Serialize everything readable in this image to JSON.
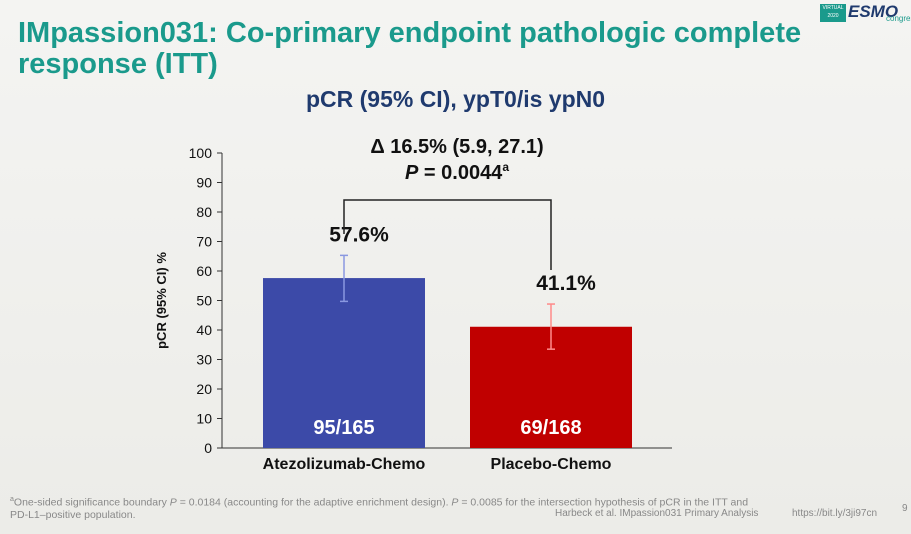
{
  "chart_data": {
    "type": "bar",
    "title": "IMpassion031: Co-primary endpoint pathologic complete response (ITT)",
    "subtitle": "pCR (95% CI), ypT0/is ypN0",
    "y_label": "pCR (95% CI) %",
    "categories": [
      "Atezolizumab-Chemo",
      "Placebo-Chemo"
    ],
    "values": [
      57.6,
      41.1
    ],
    "value_labels": [
      "57.6%",
      "41.1%"
    ],
    "ci_lower": [
      49.7,
      33.5
    ],
    "ci_upper": [
      65.3,
      48.8
    ],
    "bar_labels": [
      "95/165",
      "69/168"
    ],
    "colors": [
      "#3c4aa8",
      "#c00000"
    ],
    "error_colors": [
      "#8a98e0",
      "#ff8a8a"
    ],
    "ylim": [
      0,
      100
    ],
    "yticks": [
      0,
      10,
      20,
      30,
      40,
      50,
      60,
      70,
      80,
      90,
      100
    ],
    "annotation_delta": "Δ 16.5% (5.9, 27.1)",
    "annotation_p": {
      "italic": "P",
      "rest": " = 0.0044",
      "sup": "a"
    },
    "footnote": {
      "sup": "a",
      "line1": [
        "One-sided significance boundary ",
        "P",
        " = 0.0184 (accounting for the adaptive enrichment design). ",
        "P",
        " = 0.0085 for the intersection hypothesis of pCR in the ITT and"
      ],
      "line2": "PD-L1–positive population."
    },
    "citation": "Harbeck et al. IMpassion031 Primary Analysis",
    "url": "https://bit.ly/3ji97cn",
    "page": "9",
    "logo": {
      "line1": "VIRTUAL",
      "line2": "2020",
      "brand": "ESMO",
      "tag": "congress"
    }
  }
}
